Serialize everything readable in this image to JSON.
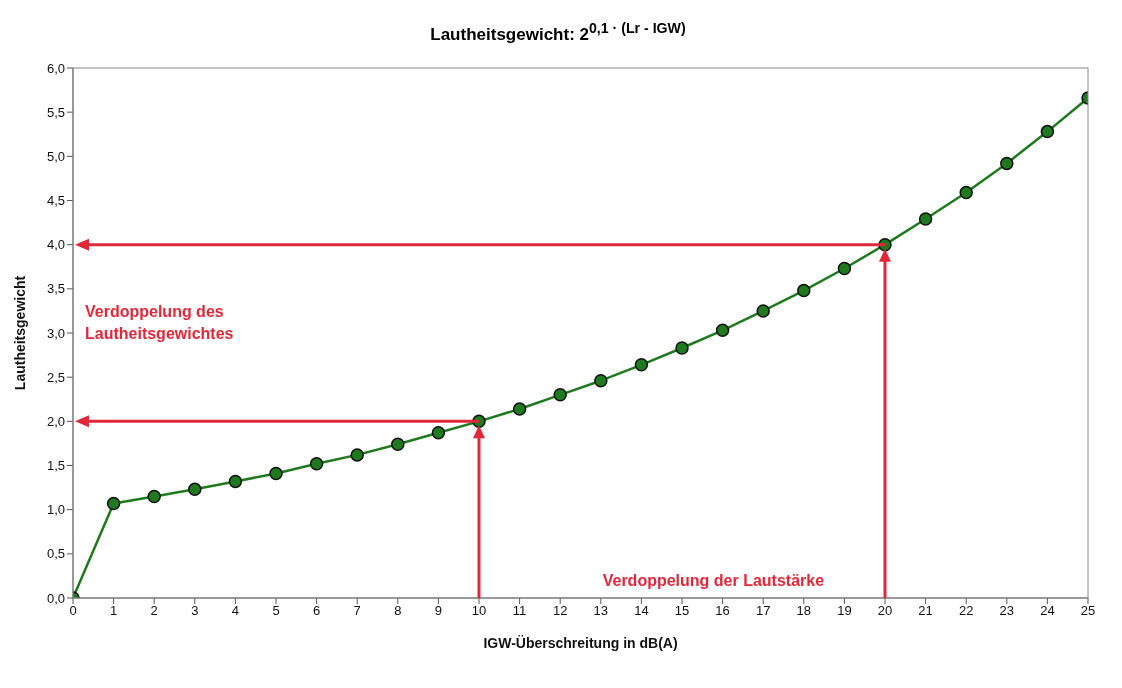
{
  "chart_data": {
    "type": "line",
    "title": "Lautheitsgewicht: 2$^{0,1 · (Lr - IGW)}$",
    "xlabel": "IGW-Überschreitung in dB(A)",
    "ylabel": "Lautheitsgewicht",
    "x": [
      0,
      1,
      2,
      3,
      4,
      5,
      6,
      7,
      8,
      9,
      10,
      11,
      12,
      13,
      14,
      15,
      16,
      17,
      18,
      19,
      20,
      21,
      22,
      23,
      24,
      25
    ],
    "series": [
      {
        "color": "#1f7a1f",
        "values": [
          0,
          1.07,
          1.15,
          1.23,
          1.32,
          1.41,
          1.52,
          1.62,
          1.74,
          1.87,
          2.0,
          2.14,
          2.3,
          2.46,
          2.64,
          2.83,
          3.03,
          3.25,
          3.48,
          3.73,
          4.0,
          4.29,
          4.59,
          4.92,
          5.28,
          5.66
        ]
      }
    ],
    "xlim": [
      0,
      25
    ],
    "xticks": [
      0,
      1,
      2,
      3,
      4,
      5,
      6,
      7,
      8,
      9,
      10,
      11,
      12,
      13,
      14,
      15,
      16,
      17,
      18,
      19,
      20,
      21,
      22,
      23,
      24,
      25
    ],
    "ylim": [
      0,
      6
    ],
    "yticks": [
      {
        "value": 0,
        "label": "0,0"
      },
      {
        "value": 0.5,
        "label": "0,5"
      },
      {
        "value": 1,
        "label": "1,0"
      },
      {
        "value": 1.5,
        "label": "1,5"
      },
      {
        "value": 2,
        "label": "2,0"
      },
      {
        "value": 2.5,
        "label": "2,5"
      },
      {
        "value": 3,
        "label": "3,0"
      },
      {
        "value": 3.5,
        "label": "3,5"
      },
      {
        "value": 4,
        "label": "4,0"
      },
      {
        "value": 4.5,
        "label": "4,5"
      },
      {
        "value": 5,
        "label": "5,0"
      },
      {
        "value": 5.5,
        "label": "5,5"
      },
      {
        "value": 6,
        "label": "6,0"
      }
    ],
    "annotations": [
      "Verdoppelung des Lautheitsgewichtes",
      "Verdoppelung der Lautstärke"
    ],
    "ref_lines": [
      {
        "axis": "y",
        "value": 2,
        "color": "#e0283a"
      },
      {
        "axis": "y",
        "value": 4,
        "color": "#e0283a"
      },
      {
        "axis": "x",
        "value": 10,
        "color": "#e0283a"
      },
      {
        "axis": "x",
        "value": 20,
        "color": "#e0283a"
      }
    ],
    "grid": false,
    "marker": "circle",
    "line_style": "solid"
  }
}
